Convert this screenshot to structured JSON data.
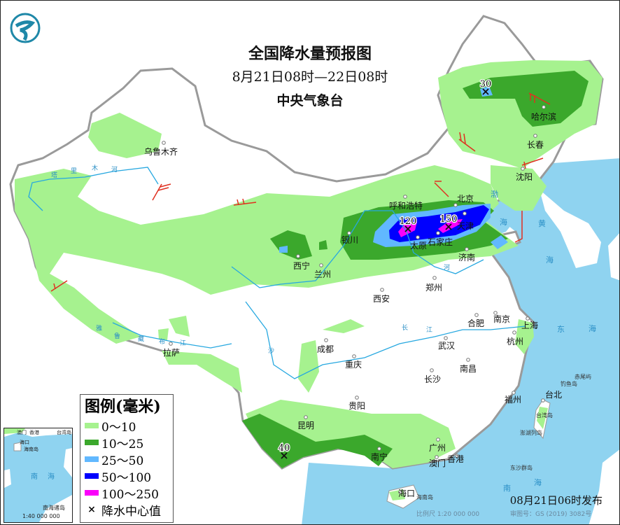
{
  "header": {
    "title": "全国降水量预报图",
    "period": "8月21日08时—22日08时",
    "agency": "中央气象台",
    "logo": "cma-logo-icon"
  },
  "colors": {
    "sea": "#8fd3f0",
    "land": "#ffffff",
    "border": "#9a9a9a",
    "river": "#27a8e0",
    "shear_line": "#e03020"
  },
  "legend": {
    "title": "图例(毫米)",
    "items": [
      {
        "label": "0～10",
        "color": "#a6f28f"
      },
      {
        "label": "10～25",
        "color": "#3ba82c"
      },
      {
        "label": "25～50",
        "color": "#61b8ff"
      },
      {
        "label": "50～100",
        "color": "#0000fe"
      },
      {
        "label": "100～250",
        "color": "#fa00fa"
      }
    ],
    "center_label": "降水中心值",
    "center_symbol": "×"
  },
  "cities": [
    "乌鲁木齐",
    "哈尔滨",
    "长春",
    "沈阳",
    "北京",
    "天津",
    "呼和浩特",
    "银川",
    "太原",
    "石家庄",
    "济南",
    "西宁",
    "兰州",
    "西安",
    "郑州",
    "合肥",
    "南京",
    "上海",
    "杭州",
    "武汉",
    "成都",
    "重庆",
    "拉萨",
    "长沙",
    "南昌",
    "贵阳",
    "福州",
    "台北",
    "昆明",
    "广州",
    "南宁",
    "香港",
    "澳门",
    "海口"
  ],
  "precip_centers": [
    {
      "value": "30"
    },
    {
      "value": "120"
    },
    {
      "value": "150"
    },
    {
      "value": "40"
    }
  ],
  "seas": [
    "渤",
    "海",
    "黄",
    "海",
    "东",
    "海",
    "南",
    "海"
  ],
  "rivers": [
    "塔",
    "里",
    "木",
    "河",
    "雅",
    "鲁",
    "藏",
    "布",
    "江",
    "长",
    "江",
    "河",
    "沙"
  ],
  "islands": [
    "赤尾屿",
    "钓鱼岛",
    "台湾岛",
    "澎湖列岛",
    "东沙群岛",
    "海南岛"
  ],
  "inset": {
    "labels": [
      "澳门",
      "香港",
      "台湾岛",
      "海口",
      "海南岛",
      "南",
      "海",
      "南海诸岛"
    ],
    "scale": "1:40 000 000"
  },
  "footer": {
    "issued": "08月21日06时发布",
    "scale": "比例尺 1:20 000 000",
    "approval": "审图号：GS (2019) 3082号"
  }
}
